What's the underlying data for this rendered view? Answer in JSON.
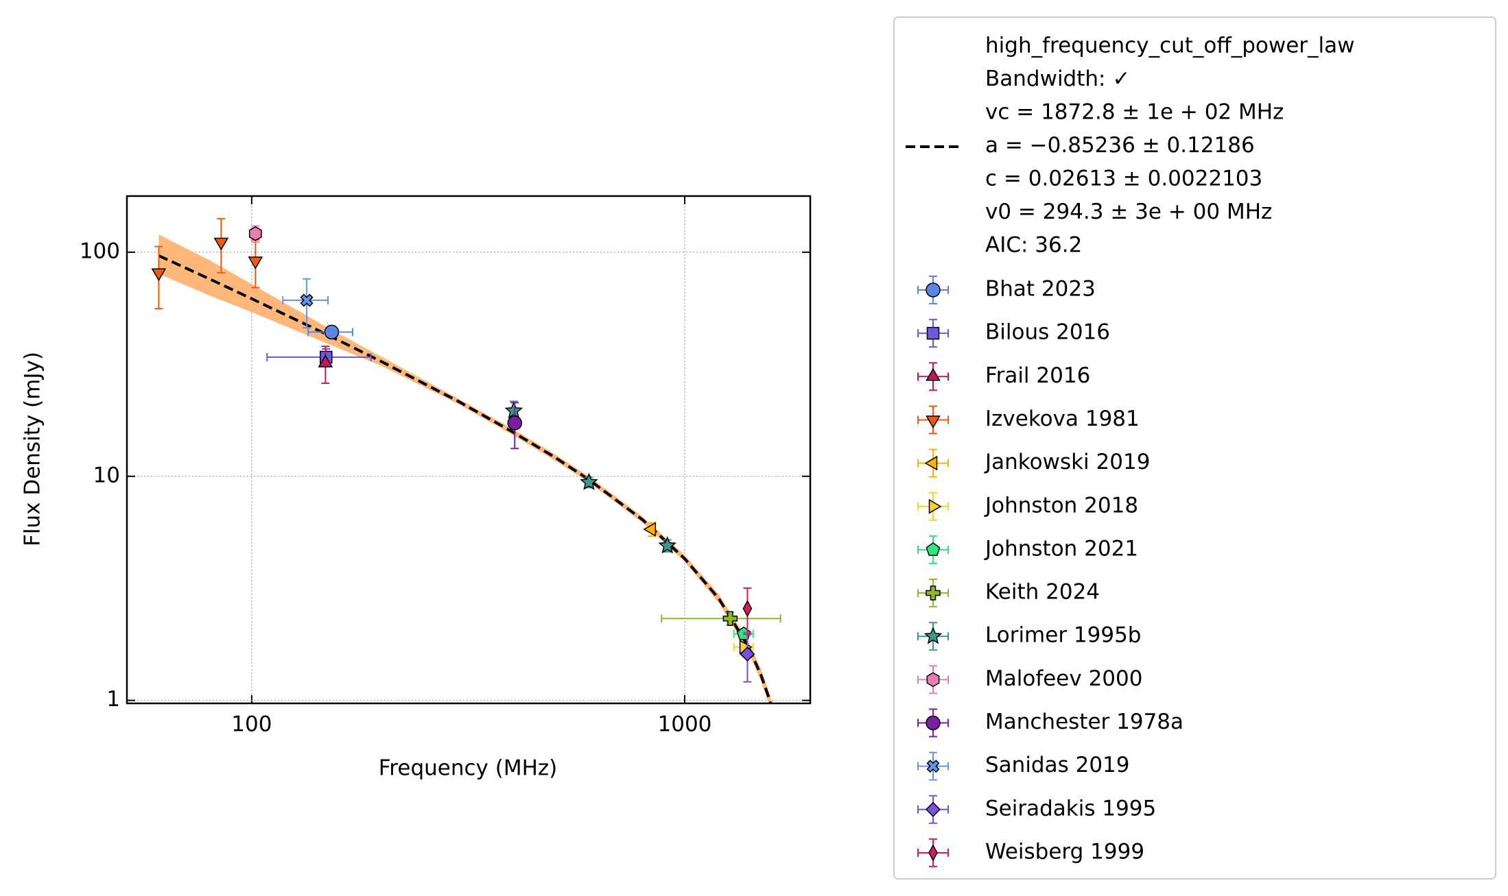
{
  "chart_data": {
    "type": "scatter",
    "xlabel": "Frequency (MHz)",
    "ylabel": "Flux Density (mJy)",
    "xscale": "log",
    "yscale": "log",
    "grid": true,
    "xlim": [
      51.5,
      1950
    ],
    "ylim": [
      0.97,
      178
    ],
    "xticks": [
      100,
      1000
    ],
    "yticks": [
      1,
      10,
      100
    ],
    "fit": {
      "label": [
        "high_frequency_cut_off_power_law",
        "Bandwidth: ✓",
        "vc = 1872.8 ± 1e + 02 MHz",
        "a = −0.85236 ± 0.12186",
        "c = 0.02613 ± 0.0022103",
        "v0 = 294.3 ± 3e + 00 MHz",
        "AIC: 36.2"
      ],
      "color": "#000000",
      "band_color": "#ffb77a",
      "x": [
        61,
        80,
        100,
        150,
        200,
        300,
        400,
        500,
        600,
        800,
        1000,
        1200,
        1400,
        1500,
        1580
      ],
      "y": [
        96.5,
        75.9,
        62.0,
        42.7,
        32.4,
        21.6,
        15.8,
        12.2,
        9.68,
        6.39,
        4.29,
        2.84,
        1.75,
        1.3,
        0.974
      ],
      "upper": [
        120,
        92,
        72,
        46,
        34,
        22.2,
        16.3,
        12.6,
        10.0,
        6.6,
        4.45,
        2.97,
        1.85,
        1.38,
        1.04
      ],
      "lower": [
        80,
        64,
        54,
        39,
        31,
        21.0,
        15.3,
        11.8,
        9.4,
        6.2,
        4.15,
        2.72,
        1.66,
        1.22,
        0.91
      ]
    },
    "series": [
      {
        "name": "Bhat 2023",
        "color": "#5b86e5",
        "marker": "o",
        "x": [
          153
        ],
        "y": [
          44
        ],
        "xerr": [
          18
        ],
        "yerr": [
          2
        ]
      },
      {
        "name": "Bilous 2016",
        "color": "#6a5ae0",
        "marker": "s",
        "x": [
          148.5
        ],
        "y": [
          34
        ],
        "xerr": [
          40
        ],
        "yerr": [
          3
        ]
      },
      {
        "name": "Frail 2016",
        "color": "#c2185b",
        "marker": "^",
        "x": [
          148
        ],
        "y": [
          32
        ],
        "xerr": [
          null
        ],
        "yerr": [
          6
        ]
      },
      {
        "name": "Izvekova 1981",
        "color": "#f05a0a",
        "marker": "v",
        "x": [
          61,
          85,
          102
        ],
        "y": [
          81,
          111,
          91.5
        ],
        "xerr": [
          null,
          null,
          null
        ],
        "yerr": [
          25,
          30,
          22
        ]
      },
      {
        "name": "Jankowski 2019",
        "color": "#ffb300",
        "marker": "<",
        "x": [
          839
        ],
        "y": [
          5.8
        ],
        "xerr": [
          null
        ],
        "yerr": [
          0.4
        ]
      },
      {
        "name": "Johnston 2018",
        "color": "#f5d327",
        "marker": ">",
        "x": [
          1369
        ],
        "y": [
          1.73
        ],
        "xerr": [
          70
        ],
        "yerr": [
          null
        ]
      },
      {
        "name": "Johnston 2021",
        "color": "#2ee57f",
        "marker": "p",
        "x": [
          1369
        ],
        "y": [
          1.98
        ],
        "xerr": [
          70
        ],
        "yerr": [
          0.1
        ]
      },
      {
        "name": "Keith 2024",
        "color": "#8db82a",
        "marker": "P",
        "x": [
          1274
        ],
        "y": [
          2.32
        ],
        "xerr": [
          390
        ],
        "yerr": [
          0.15
        ]
      },
      {
        "name": "Lorimer 1995b",
        "color": "#3c9a8c",
        "marker": "*",
        "x": [
          403,
          601,
          912
        ],
        "y": [
          19.6,
          9.4,
          4.9
        ],
        "xerr": [
          null,
          null,
          null
        ],
        "yerr": [
          2,
          0.5,
          0.3
        ]
      },
      {
        "name": "Malofeev 2000",
        "color": "#e87eb0",
        "marker": "h",
        "x": [
          102
        ],
        "y": [
          121
        ],
        "xerr": [
          null
        ],
        "yerr": [
          10
        ]
      },
      {
        "name": "Manchester 1978a",
        "color": "#7b1fa2",
        "marker": "o",
        "x": [
          405
        ],
        "y": [
          17.3
        ],
        "xerr": [
          null
        ],
        "yerr": [
          4
        ]
      },
      {
        "name": "Sanidas 2019",
        "color": "#6495ed",
        "marker": "X",
        "x": [
          134
        ],
        "y": [
          61
        ],
        "xerr": [
          16
        ],
        "yerr": [
          15
        ]
      },
      {
        "name": "Seiradakis 1995",
        "color": "#7b4fe0",
        "marker": "D",
        "x": [
          1396
        ],
        "y": [
          1.61
        ],
        "xerr": [
          null
        ],
        "yerr": [
          0.4
        ]
      },
      {
        "name": "Weisberg 1999",
        "color": "#d81b60",
        "marker": "d",
        "x": [
          1396
        ],
        "y": [
          2.57
        ],
        "xerr": [
          null
        ],
        "yerr": [
          0.6
        ]
      }
    ]
  }
}
